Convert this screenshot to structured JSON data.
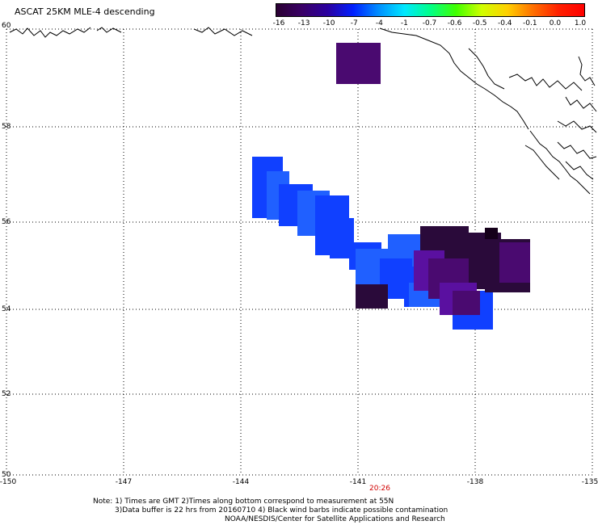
{
  "title": "ASCAT 25KM MLE-4 descending",
  "colorbar": {
    "labels": [
      "-16",
      "-13",
      "-10",
      "-7",
      "-4",
      "-1",
      "-0.7",
      "-0.6",
      "-0.5",
      "-0.4",
      "-0.1",
      "0.0",
      "1.0"
    ],
    "gradient": [
      "#2a0032",
      "#3a0066",
      "#2a00a0",
      "#0020ff",
      "#0090ff",
      "#00e8ff",
      "#00ff88",
      "#40ff00",
      "#d0ff00",
      "#ffd000",
      "#ff7000",
      "#ff2000",
      "#ff0000"
    ]
  },
  "axes": {
    "x_ticks": [
      "-150",
      "-147",
      "-144",
      "-141",
      "-138",
      "-135"
    ],
    "y_ticks": [
      "60",
      "58",
      "56",
      "54",
      "52",
      "50"
    ]
  },
  "time_label": "20:26",
  "notes": {
    "line1": "Note: 1) Times are GMT 2)Times along bottom correspond to measurement at 55N",
    "line2": "3)Data buffer is 22 hrs from 20160710 4) Black wind barbs indicate possible contamination",
    "line3": "NOAA/NESDIS/Center for Satellite Applications and Research"
  },
  "colors": {
    "dark_purple": "#2a0a3a",
    "purple": "#4a0a70",
    "violet": "#5a10a0",
    "blue": "#1040ff",
    "light_blue": "#2060ff"
  }
}
